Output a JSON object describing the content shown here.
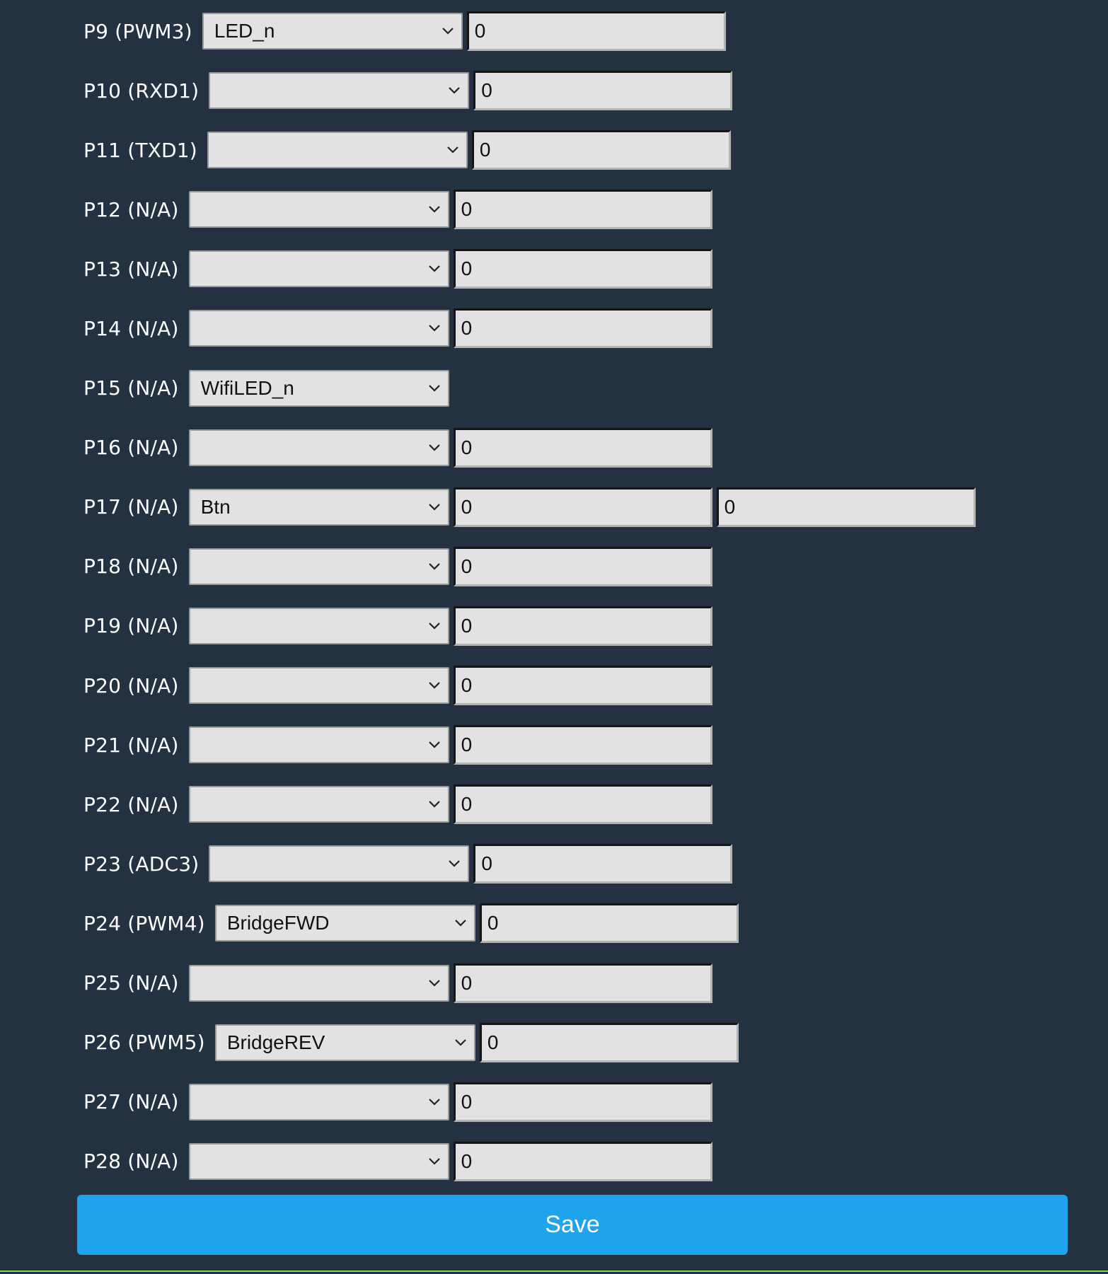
{
  "pins": [
    {
      "label": "P9 (PWM3)",
      "role": "LED_n",
      "inputs": [
        "0"
      ]
    },
    {
      "label": "P10 (RXD1)",
      "role": "",
      "inputs": [
        "0"
      ]
    },
    {
      "label": "P11 (TXD1)",
      "role": "",
      "inputs": [
        "0"
      ]
    },
    {
      "label": "P12 (N/A)",
      "role": "",
      "inputs": [
        "0"
      ]
    },
    {
      "label": "P13 (N/A)",
      "role": "",
      "inputs": [
        "0"
      ]
    },
    {
      "label": "P14 (N/A)",
      "role": "",
      "inputs": [
        "0"
      ]
    },
    {
      "label": "P15 (N/A)",
      "role": "WifiLED_n",
      "inputs": []
    },
    {
      "label": "P16 (N/A)",
      "role": "",
      "inputs": [
        "0"
      ]
    },
    {
      "label": "P17 (N/A)",
      "role": "Btn",
      "inputs": [
        "0",
        "0"
      ]
    },
    {
      "label": "P18 (N/A)",
      "role": "",
      "inputs": [
        "0"
      ]
    },
    {
      "label": "P19 (N/A)",
      "role": "",
      "inputs": [
        "0"
      ]
    },
    {
      "label": "P20 (N/A)",
      "role": "",
      "inputs": [
        "0"
      ]
    },
    {
      "label": "P21 (N/A)",
      "role": "",
      "inputs": [
        "0"
      ]
    },
    {
      "label": "P22 (N/A)",
      "role": "",
      "inputs": [
        "0"
      ]
    },
    {
      "label": "P23 (ADC3)",
      "role": "",
      "inputs": [
        "0"
      ]
    },
    {
      "label": "P24 (PWM4)",
      "role": "BridgeFWD",
      "inputs": [
        "0"
      ]
    },
    {
      "label": "P25 (N/A)",
      "role": "",
      "inputs": [
        "0"
      ]
    },
    {
      "label": "P26 (PWM5)",
      "role": "BridgeREV",
      "inputs": [
        "0"
      ]
    },
    {
      "label": "P27 (N/A)",
      "role": "",
      "inputs": [
        "0"
      ]
    },
    {
      "label": "P28 (N/A)",
      "role": "",
      "inputs": [
        "0"
      ]
    }
  ],
  "save_label": "Save",
  "colors": {
    "background": "#233140",
    "accent": "#1fa3ec",
    "field": "#e2e2e2",
    "bottom_line": "#8ed463"
  },
  "icons": {
    "select_arrow": "chevron-down-icon"
  }
}
